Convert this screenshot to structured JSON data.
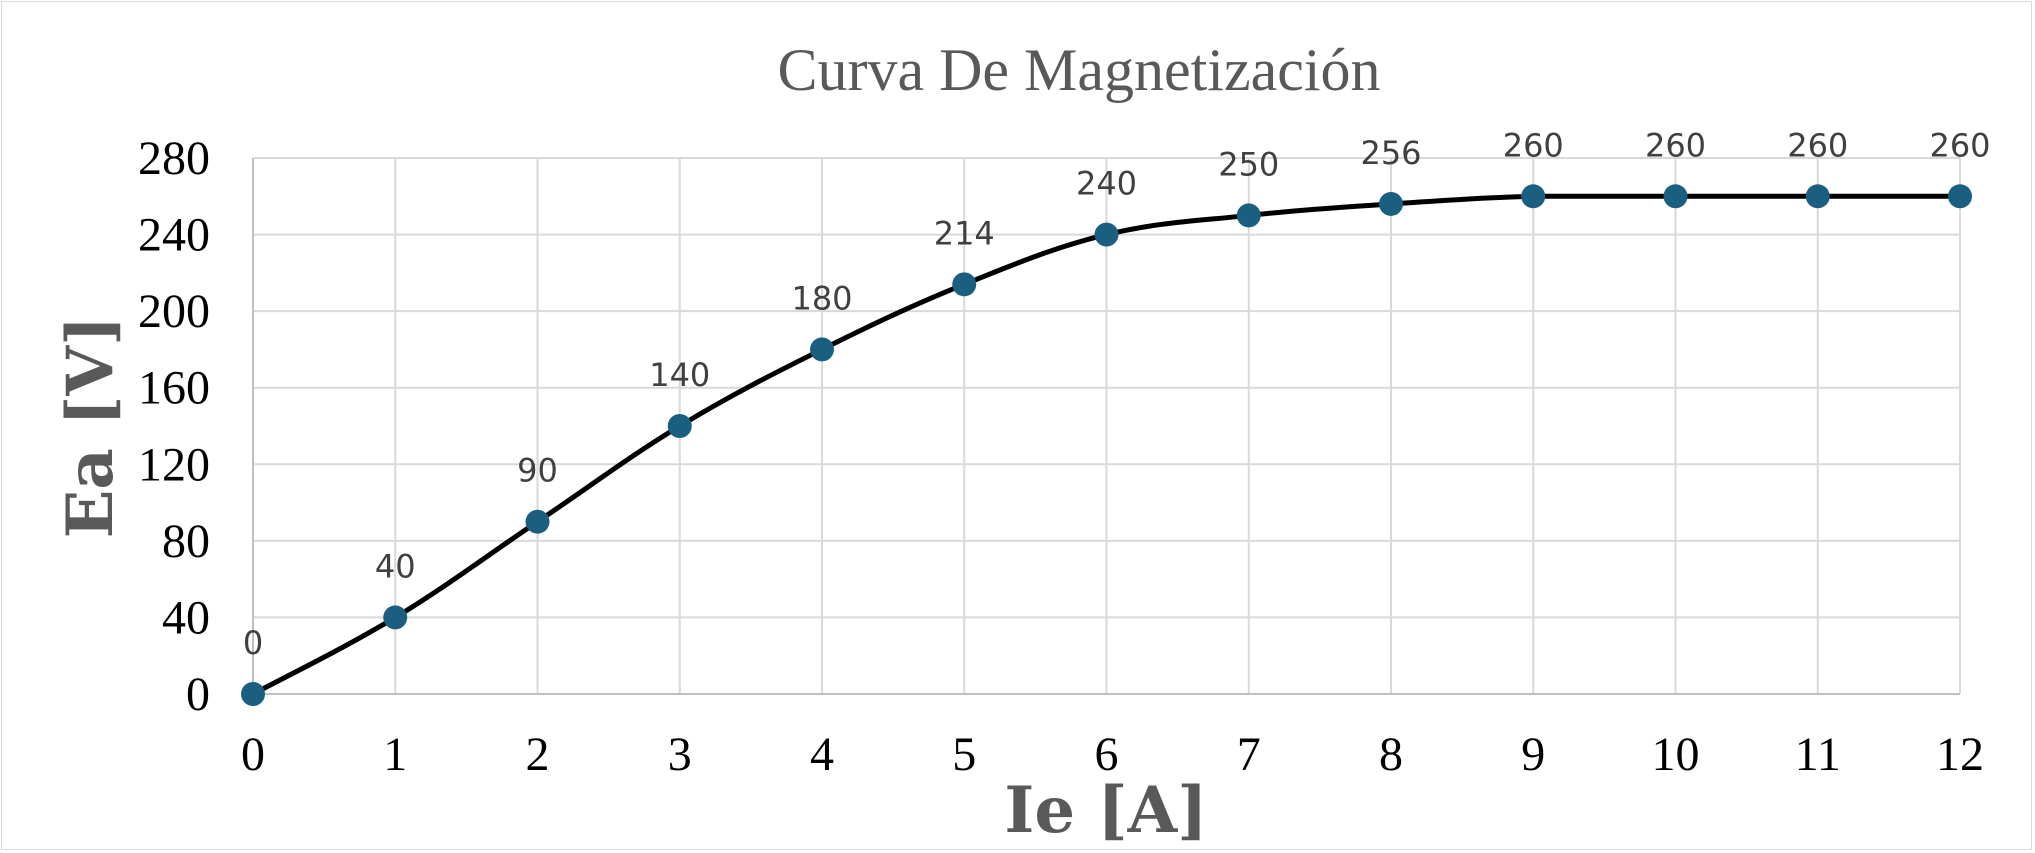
{
  "chart_data": {
    "type": "line",
    "title": "Curva De Magnetización",
    "xlabel": "Ie [A]",
    "ylabel": "Ea [V]",
    "x": [
      0,
      1,
      2,
      3,
      4,
      5,
      6,
      7,
      8,
      9,
      10,
      11,
      12
    ],
    "xlim": [
      0,
      12
    ],
    "ylim": [
      0,
      280
    ],
    "x_ticks": [
      0,
      1,
      2,
      3,
      4,
      5,
      6,
      7,
      8,
      9,
      10,
      11,
      12
    ],
    "y_ticks": [
      0,
      40,
      80,
      120,
      160,
      200,
      240,
      280
    ],
    "grid": true,
    "legend": "none",
    "series": [
      {
        "name": "Ea",
        "values": [
          0,
          40,
          90,
          140,
          180,
          214,
          240,
          250,
          256,
          260,
          260,
          260,
          260
        ],
        "data_labels": [
          "0",
          "40",
          "90",
          "140",
          "180",
          "214",
          "240",
          "250",
          "256",
          "260",
          "260",
          "260",
          "260"
        ],
        "line_color": "#000000",
        "marker_color": "#1a5f80"
      }
    ]
  }
}
